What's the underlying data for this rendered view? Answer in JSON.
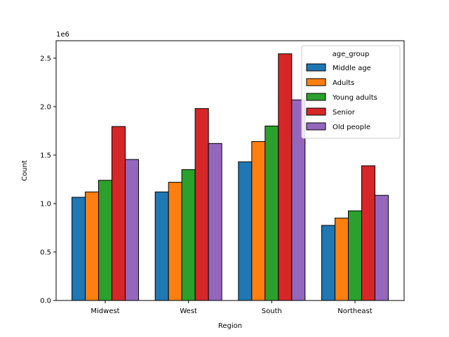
{
  "chart_data": {
    "type": "bar",
    "xlabel": "Region",
    "ylabel": "Count",
    "offset_text": "1e6",
    "scale": 1000000,
    "categories": [
      "Midwest",
      "West",
      "South",
      "Northeast"
    ],
    "ylim": [
      0,
      2.68
    ],
    "yticks": [
      0.0,
      0.5,
      1.0,
      1.5,
      2.0,
      2.5
    ],
    "ytick_labels": [
      "0.0",
      "0.5",
      "1.0",
      "1.5",
      "2.0",
      "2.5"
    ],
    "legend": {
      "title": "age_group",
      "position": "top-right"
    },
    "series": [
      {
        "name": "Middle age",
        "color": "#1f77b4",
        "values": [
          1.065,
          1.12,
          1.43,
          0.775
        ]
      },
      {
        "name": "Adults",
        "color": "#ff7f0e",
        "values": [
          1.12,
          1.22,
          1.64,
          0.85
        ]
      },
      {
        "name": "Young adults",
        "color": "#2ca02c",
        "values": [
          1.24,
          1.35,
          1.8,
          0.925
        ]
      },
      {
        "name": "Senior",
        "color": "#d62728",
        "values": [
          1.795,
          1.98,
          2.545,
          1.39
        ]
      },
      {
        "name": "Old people",
        "color": "#9467bd",
        "values": [
          1.455,
          1.62,
          2.07,
          1.085
        ]
      }
    ]
  }
}
